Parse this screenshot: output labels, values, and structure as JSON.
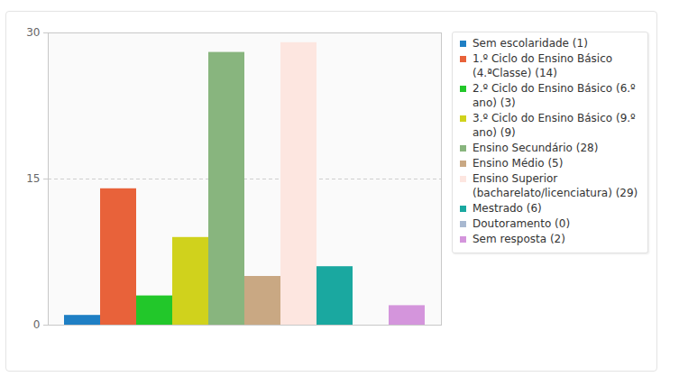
{
  "chart_data": {
    "type": "bar",
    "categories": [
      "Sem escolaridade (1)",
      "1.º Ciclo do Ensino Básico (4.ªClasse) (14)",
      "2.º Ciclo do Ensino Básico (6.º ano) (3)",
      "3.º Ciclo do Ensino Básico (9.º ano) (9)",
      "Ensino Secundário (28)",
      "Ensino Médio (5)",
      "Ensino Superior (bacharelato/licenciatura) (29)",
      "Mestrado (6)",
      "Doutoramento (0)",
      "Sem resposta (2)"
    ],
    "values": [
      1,
      14,
      3,
      9,
      28,
      5,
      29,
      6,
      0,
      2
    ],
    "colors": [
      "#1f7fc4",
      "#e8623a",
      "#22c72a",
      "#d0d21c",
      "#88b57e",
      "#c9a883",
      "#fde6e0",
      "#1aa8a0",
      "#a8b8d0",
      "#d495dc"
    ],
    "ylim": [
      0,
      30
    ],
    "yticks": [
      0,
      15,
      30
    ],
    "grid": true,
    "legend": "right",
    "tick_labels": "y"
  }
}
